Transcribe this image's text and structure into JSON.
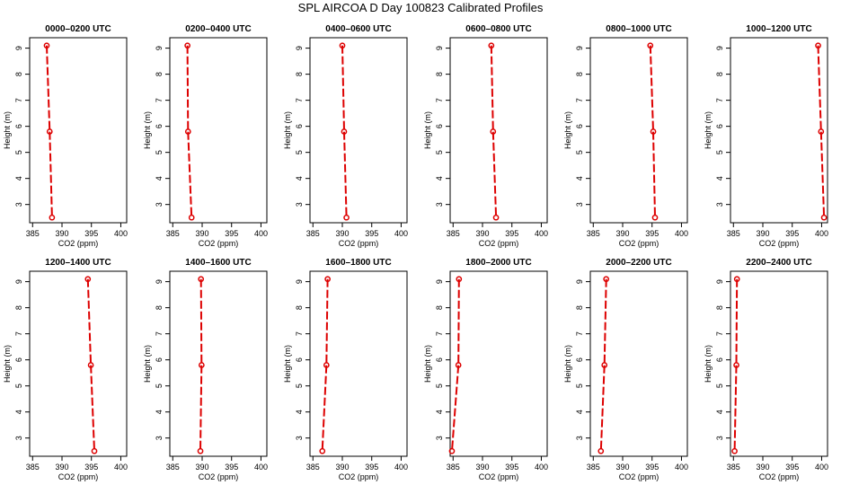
{
  "title": "SPL AIRCOA D  Day 100823  Calibrated Profiles",
  "colors": {
    "series": "#dd0000",
    "axes": "#000000",
    "background": "#ffffff"
  },
  "chart_data": [
    {
      "type": "line",
      "title": "0000–0200 UTC",
      "xlabel": "CO2 (ppm)",
      "ylabel": "Height (m)",
      "xlim": [
        384.5,
        401
      ],
      "ylim": [
        2.3,
        9.4
      ],
      "xticks": [
        385,
        390,
        395,
        400
      ],
      "yticks": [
        3,
        4,
        5,
        6,
        7,
        8,
        9
      ],
      "grid": false,
      "series": [
        {
          "values": [
            {
              "x": 387.4,
              "y": 9.1
            },
            {
              "x": 387.9,
              "y": 5.8
            },
            {
              "x": 388.3,
              "y": 2.5
            }
          ]
        }
      ]
    },
    {
      "type": "line",
      "title": "0200–0400 UTC",
      "xlabel": "CO2 (ppm)",
      "ylabel": "Height (m)",
      "xlim": [
        384.5,
        401
      ],
      "ylim": [
        2.3,
        9.4
      ],
      "xticks": [
        385,
        390,
        395,
        400
      ],
      "yticks": [
        3,
        4,
        5,
        6,
        7,
        8,
        9
      ],
      "grid": false,
      "series": [
        {
          "values": [
            {
              "x": 387.5,
              "y": 9.1
            },
            {
              "x": 387.6,
              "y": 5.8
            },
            {
              "x": 388.2,
              "y": 2.5
            }
          ]
        }
      ]
    },
    {
      "type": "line",
      "title": "0400–0600 UTC",
      "xlabel": "CO2 (ppm)",
      "ylabel": "Height (m)",
      "xlim": [
        384.5,
        401
      ],
      "ylim": [
        2.3,
        9.4
      ],
      "xticks": [
        385,
        390,
        395,
        400
      ],
      "yticks": [
        3,
        4,
        5,
        6,
        7,
        8,
        9
      ],
      "grid": false,
      "series": [
        {
          "values": [
            {
              "x": 390.0,
              "y": 9.1
            },
            {
              "x": 390.3,
              "y": 5.8
            },
            {
              "x": 390.7,
              "y": 2.5
            }
          ]
        }
      ]
    },
    {
      "type": "line",
      "title": "0600–0800 UTC",
      "xlabel": "CO2 (ppm)",
      "ylabel": "Height (m)",
      "xlim": [
        384.5,
        401
      ],
      "ylim": [
        2.3,
        9.4
      ],
      "xticks": [
        385,
        390,
        395,
        400
      ],
      "yticks": [
        3,
        4,
        5,
        6,
        7,
        8,
        9
      ],
      "grid": false,
      "series": [
        {
          "values": [
            {
              "x": 391.5,
              "y": 9.1
            },
            {
              "x": 391.8,
              "y": 5.8
            },
            {
              "x": 392.3,
              "y": 2.5
            }
          ]
        }
      ]
    },
    {
      "type": "line",
      "title": "0800–1000 UTC",
      "xlabel": "CO2 (ppm)",
      "ylabel": "Height (m)",
      "xlim": [
        384.5,
        401
      ],
      "ylim": [
        2.3,
        9.4
      ],
      "xticks": [
        385,
        390,
        395,
        400
      ],
      "yticks": [
        3,
        4,
        5,
        6,
        7,
        8,
        9
      ],
      "grid": false,
      "series": [
        {
          "values": [
            {
              "x": 394.7,
              "y": 9.1
            },
            {
              "x": 395.2,
              "y": 5.8
            },
            {
              "x": 395.5,
              "y": 2.5
            }
          ]
        }
      ]
    },
    {
      "type": "line",
      "title": "1000–1200 UTC",
      "xlabel": "CO2 (ppm)",
      "ylabel": "Height (m)",
      "xlim": [
        384.5,
        401
      ],
      "ylim": [
        2.3,
        9.4
      ],
      "xticks": [
        385,
        390,
        395,
        400
      ],
      "yticks": [
        3,
        4,
        5,
        6,
        7,
        8,
        9
      ],
      "grid": false,
      "series": [
        {
          "values": [
            {
              "x": 399.4,
              "y": 9.1
            },
            {
              "x": 399.9,
              "y": 5.8
            },
            {
              "x": 400.4,
              "y": 2.5
            }
          ]
        }
      ]
    },
    {
      "type": "line",
      "title": "1200–1400 UTC",
      "xlabel": "CO2 (ppm)",
      "ylabel": "Height (m)",
      "xlim": [
        384.5,
        401
      ],
      "ylim": [
        2.3,
        9.4
      ],
      "xticks": [
        385,
        390,
        395,
        400
      ],
      "yticks": [
        3,
        4,
        5,
        6,
        7,
        8,
        9
      ],
      "grid": false,
      "series": [
        {
          "values": [
            {
              "x": 394.4,
              "y": 9.1
            },
            {
              "x": 394.9,
              "y": 5.8
            },
            {
              "x": 395.5,
              "y": 2.5
            }
          ]
        }
      ]
    },
    {
      "type": "line",
      "title": "1400–1600 UTC",
      "xlabel": "CO2 (ppm)",
      "ylabel": "Height (m)",
      "xlim": [
        384.5,
        401
      ],
      "ylim": [
        2.3,
        9.4
      ],
      "xticks": [
        385,
        390,
        395,
        400
      ],
      "yticks": [
        3,
        4,
        5,
        6,
        7,
        8,
        9
      ],
      "grid": false,
      "series": [
        {
          "values": [
            {
              "x": 389.8,
              "y": 9.1
            },
            {
              "x": 389.9,
              "y": 5.8
            },
            {
              "x": 389.7,
              "y": 2.5
            }
          ]
        }
      ]
    },
    {
      "type": "line",
      "title": "1600–1800 UTC",
      "xlabel": "CO2 (ppm)",
      "ylabel": "Height (m)",
      "xlim": [
        384.5,
        401
      ],
      "ylim": [
        2.3,
        9.4
      ],
      "xticks": [
        385,
        390,
        395,
        400
      ],
      "yticks": [
        3,
        4,
        5,
        6,
        7,
        8,
        9
      ],
      "grid": false,
      "series": [
        {
          "values": [
            {
              "x": 387.5,
              "y": 9.1
            },
            {
              "x": 387.3,
              "y": 5.8
            },
            {
              "x": 386.6,
              "y": 2.5
            }
          ]
        }
      ]
    },
    {
      "type": "line",
      "title": "1800–2000 UTC",
      "xlabel": "CO2 (ppm)",
      "ylabel": "Height (m)",
      "xlim": [
        384.5,
        401
      ],
      "ylim": [
        2.3,
        9.4
      ],
      "xticks": [
        385,
        390,
        395,
        400
      ],
      "yticks": [
        3,
        4,
        5,
        6,
        7,
        8,
        9
      ],
      "grid": false,
      "series": [
        {
          "values": [
            {
              "x": 386.0,
              "y": 9.1
            },
            {
              "x": 385.9,
              "y": 5.8
            },
            {
              "x": 384.8,
              "y": 2.5
            }
          ]
        }
      ]
    },
    {
      "type": "line",
      "title": "2000–2200 UTC",
      "xlabel": "CO2 (ppm)",
      "ylabel": "Height (m)",
      "xlim": [
        384.5,
        401
      ],
      "ylim": [
        2.3,
        9.4
      ],
      "xticks": [
        385,
        390,
        395,
        400
      ],
      "yticks": [
        3,
        4,
        5,
        6,
        7,
        8,
        9
      ],
      "grid": false,
      "series": [
        {
          "values": [
            {
              "x": 387.2,
              "y": 9.1
            },
            {
              "x": 386.9,
              "y": 5.8
            },
            {
              "x": 386.3,
              "y": 2.5
            }
          ]
        }
      ]
    },
    {
      "type": "line",
      "title": "2200–2400 UTC",
      "xlabel": "CO2 (ppm)",
      "ylabel": "Height (m)",
      "xlim": [
        384.5,
        401
      ],
      "ylim": [
        2.3,
        9.4
      ],
      "xticks": [
        385,
        390,
        395,
        400
      ],
      "yticks": [
        3,
        4,
        5,
        6,
        7,
        8,
        9
      ],
      "grid": false,
      "series": [
        {
          "values": [
            {
              "x": 385.6,
              "y": 9.1
            },
            {
              "x": 385.5,
              "y": 5.8
            },
            {
              "x": 385.2,
              "y": 2.5
            }
          ]
        }
      ]
    }
  ]
}
